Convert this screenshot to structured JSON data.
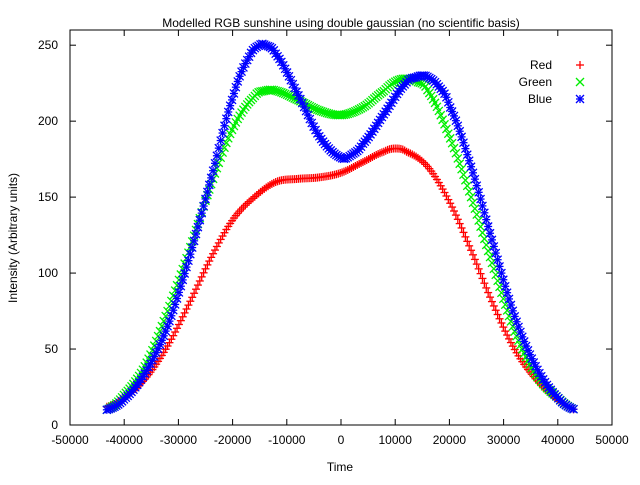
{
  "chart_data": {
    "type": "scatter",
    "title": "Modelled RGB sunshine using double gaussian (no scientific basis)",
    "xlabel": "Time",
    "ylabel": "Intensity (Arbitrary units)",
    "xlim": [
      -50000,
      50000
    ],
    "ylim": [
      0,
      260
    ],
    "xticks": [
      -50000,
      -40000,
      -30000,
      -20000,
      -10000,
      0,
      10000,
      20000,
      30000,
      40000,
      50000
    ],
    "yticks": [
      0,
      50,
      100,
      150,
      200,
      250
    ],
    "grid": false,
    "legend_position": "top-right",
    "series": [
      {
        "name": "Red",
        "marker": "plus",
        "color": "#ff0000",
        "x": [
          -43200,
          -40000,
          -36000,
          -32000,
          -28000,
          -24000,
          -20000,
          -16000,
          -12000,
          -8000,
          -4000,
          0,
          4000,
          8000,
          10000,
          12000,
          16000,
          20000,
          24000,
          28000,
          32000,
          36000,
          40000,
          43200
        ],
        "y": [
          12,
          18,
          31,
          52,
          80,
          110,
          135,
          150,
          160,
          162,
          163,
          166,
          173,
          180,
          182,
          180,
          170,
          147,
          115,
          80,
          50,
          30,
          17,
          10
        ]
      },
      {
        "name": "Green",
        "marker": "x",
        "color": "#00ee00",
        "x": [
          -43200,
          -40000,
          -36000,
          -32000,
          -28000,
          -24000,
          -20000,
          -16000,
          -14000,
          -12000,
          -8000,
          -4000,
          0,
          4000,
          8000,
          10000,
          12000,
          14000,
          16000,
          20000,
          24000,
          28000,
          32000,
          36000,
          40000,
          43200
        ],
        "y": [
          10,
          20,
          40,
          75,
          115,
          158,
          195,
          216,
          220,
          220,
          214,
          207,
          204,
          209,
          220,
          226,
          228,
          226,
          220,
          190,
          150,
          105,
          62,
          33,
          18,
          10
        ]
      },
      {
        "name": "Blue",
        "marker": "star",
        "color": "#0000ff",
        "x": [
          -43200,
          -40000,
          -36000,
          -32000,
          -28000,
          -24000,
          -20000,
          -17000,
          -15000,
          -14000,
          -12000,
          -8000,
          -4000,
          0,
          2000,
          4000,
          8000,
          12000,
          14000,
          15000,
          16000,
          18000,
          20000,
          24000,
          28000,
          32000,
          36000,
          40000,
          43200
        ],
        "y": [
          10,
          17,
          35,
          65,
          110,
          162,
          215,
          242,
          250,
          250,
          244,
          218,
          190,
          176,
          178,
          185,
          205,
          225,
          229,
          230,
          229,
          223,
          210,
          170,
          120,
          72,
          38,
          18,
          10
        ]
      }
    ]
  }
}
